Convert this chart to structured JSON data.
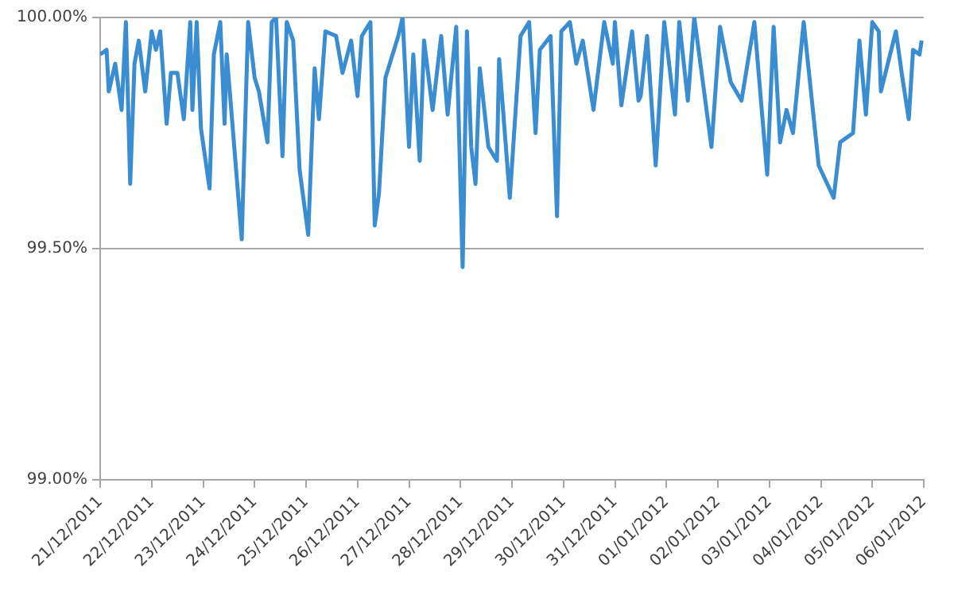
{
  "chart_data": {
    "type": "line",
    "x": [
      "2011-12-21T00:00",
      "2011-12-21T03:00",
      "2011-12-21T04:00",
      "2011-12-21T07:00",
      "2011-12-21T10:00",
      "2011-12-21T12:00",
      "2011-12-21T14:00",
      "2011-12-21T16:00",
      "2011-12-21T18:00",
      "2011-12-21T21:00",
      "2011-12-22T00:00",
      "2011-12-22T02:00",
      "2011-12-22T04:00",
      "2011-12-22T07:00",
      "2011-12-22T09:00",
      "2011-12-22T12:00",
      "2011-12-22T15:00",
      "2011-12-22T18:00",
      "2011-12-22T19:00",
      "2011-12-22T21:00",
      "2011-12-22T23:00",
      "2011-12-23T03:00",
      "2011-12-23T05:00",
      "2011-12-23T08:00",
      "2011-12-23T10:00",
      "2011-12-23T11:00",
      "2011-12-23T14:00",
      "2011-12-23T18:00",
      "2011-12-23T21:00",
      "2011-12-24T00:00",
      "2011-12-24T02:00",
      "2011-12-24T06:00",
      "2011-12-24T08:00",
      "2011-12-24T10:00",
      "2011-12-24T13:00",
      "2011-12-24T15:00",
      "2011-12-24T18:00",
      "2011-12-24T21:00",
      "2011-12-25T01:00",
      "2011-12-25T04:00",
      "2011-12-25T06:00",
      "2011-12-25T09:00",
      "2011-12-25T14:00",
      "2011-12-25T17:00",
      "2011-12-25T21:00",
      "2011-12-26T00:00",
      "2011-12-26T02:00",
      "2011-12-26T06:00",
      "2011-12-26T08:00",
      "2011-12-26T10:00",
      "2011-12-26T13:00",
      "2011-12-26T15:00",
      "2011-12-26T19:00",
      "2011-12-26T21:00",
      "2011-12-27T00:00",
      "2011-12-27T02:00",
      "2011-12-27T05:00",
      "2011-12-27T07:00",
      "2011-12-27T11:00",
      "2011-12-27T15:00",
      "2011-12-27T18:00",
      "2011-12-27T22:00",
      "2011-12-28T01:00",
      "2011-12-28T03:00",
      "2011-12-28T05:00",
      "2011-12-28T07:00",
      "2011-12-28T09:00",
      "2011-12-28T13:00",
      "2011-12-28T17:00",
      "2011-12-28T18:00",
      "2011-12-28T23:00",
      "2011-12-29T04:00",
      "2011-12-29T08:00",
      "2011-12-29T11:00",
      "2011-12-29T13:00",
      "2011-12-29T18:00",
      "2011-12-29T21:00",
      "2011-12-29T23:00",
      "2011-12-30T03:00",
      "2011-12-30T06:00",
      "2011-12-30T09:00",
      "2011-12-30T14:00",
      "2011-12-30T19:00",
      "2011-12-30T23:00",
      "2011-12-31T00:00",
      "2011-12-31T03:00",
      "2011-12-31T08:00",
      "2011-12-31T11:00",
      "2011-12-31T12:00",
      "2011-12-31T15:00",
      "2011-12-31T19:00",
      "2011-12-31T23:00",
      "2012-01-01T04:00",
      "2012-01-01T06:00",
      "2012-01-01T10:00",
      "2012-01-01T13:00",
      "2012-01-01T21:00",
      "2012-01-02T01:00",
      "2012-01-02T06:00",
      "2012-01-02T11:00",
      "2012-01-02T17:00",
      "2012-01-02T23:00",
      "2012-01-03T02:00",
      "2012-01-03T05:00",
      "2012-01-03T08:00",
      "2012-01-03T11:00",
      "2012-01-03T16:00",
      "2012-01-03T23:00",
      "2012-01-04T06:00",
      "2012-01-04T09:00",
      "2012-01-04T15:00",
      "2012-01-04T18:00",
      "2012-01-04T21:00",
      "2012-01-05T00:00",
      "2012-01-05T03:00",
      "2012-01-05T04:00",
      "2012-01-05T11:00",
      "2012-01-05T14:00",
      "2012-01-05T17:00",
      "2012-01-05T19:00",
      "2012-01-05T22:00",
      "2012-01-05T23:00"
    ],
    "series": [
      {
        "color": "#3a8dd0",
        "values": [
          99.92,
          99.93,
          99.84,
          99.9,
          99.8,
          99.99,
          99.64,
          99.9,
          99.95,
          99.84,
          99.97,
          99.93,
          99.97,
          99.77,
          99.88,
          99.88,
          99.78,
          99.99,
          99.8,
          99.99,
          99.76,
          99.63,
          99.92,
          99.99,
          99.77,
          99.92,
          99.75,
          99.52,
          99.99,
          99.87,
          99.84,
          99.73,
          99.99,
          100.0,
          99.7,
          99.99,
          99.95,
          99.67,
          99.53,
          99.89,
          99.78,
          99.97,
          99.96,
          99.88,
          99.95,
          99.83,
          99.96,
          99.99,
          99.55,
          99.62,
          99.87,
          99.9,
          99.96,
          100.0,
          99.72,
          99.92,
          99.69,
          99.95,
          99.8,
          99.96,
          99.79,
          99.98,
          99.46,
          99.97,
          99.72,
          99.64,
          99.89,
          99.72,
          99.69,
          99.91,
          99.61,
          99.96,
          99.99,
          99.75,
          99.93,
          99.96,
          99.57,
          99.97,
          99.99,
          99.9,
          99.95,
          99.8,
          99.99,
          99.9,
          99.99,
          99.81,
          99.97,
          99.82,
          99.83,
          99.96,
          99.68,
          99.99,
          99.79,
          99.99,
          99.82,
          100.0,
          99.72,
          99.98,
          99.86,
          99.82,
          99.99,
          99.66,
          99.98,
          99.73,
          99.8,
          99.75,
          99.99,
          99.68,
          99.61,
          99.73,
          99.75,
          99.95,
          99.79,
          99.99,
          99.97,
          99.84,
          99.97,
          99.87,
          99.78,
          99.93,
          99.92,
          99.95
        ]
      }
    ],
    "xlim": [
      "2011-12-21",
      "2012-01-06"
    ],
    "xticks": [
      {
        "value": "2011-12-21",
        "label": "21/12/2011"
      },
      {
        "value": "2011-12-22",
        "label": "22/12/2011"
      },
      {
        "value": "2011-12-23",
        "label": "23/12/2011"
      },
      {
        "value": "2011-12-24",
        "label": "24/12/2011"
      },
      {
        "value": "2011-12-25",
        "label": "25/12/2011"
      },
      {
        "value": "2011-12-26",
        "label": "26/12/2011"
      },
      {
        "value": "2011-12-27",
        "label": "27/12/2011"
      },
      {
        "value": "2011-12-28",
        "label": "28/12/2011"
      },
      {
        "value": "2011-12-29",
        "label": "29/12/2011"
      },
      {
        "value": "2011-12-30",
        "label": "30/12/2011"
      },
      {
        "value": "2011-12-31",
        "label": "31/12/2011"
      },
      {
        "value": "2012-01-01",
        "label": "01/01/2012"
      },
      {
        "value": "2012-01-02",
        "label": "02/01/2012"
      },
      {
        "value": "2012-01-03",
        "label": "03/01/2012"
      },
      {
        "value": "2012-01-04",
        "label": "04/01/2012"
      },
      {
        "value": "2012-01-05",
        "label": "05/01/2012"
      },
      {
        "value": "2012-01-06",
        "label": "06/01/2012"
      }
    ],
    "ylim": [
      99,
      100
    ],
    "yticks": [
      {
        "value": 99,
        "label": "99.00%"
      },
      {
        "value": 99.5,
        "label": "99.50%"
      },
      {
        "value": 100,
        "label": "100.00%"
      }
    ],
    "grid": "y"
  }
}
